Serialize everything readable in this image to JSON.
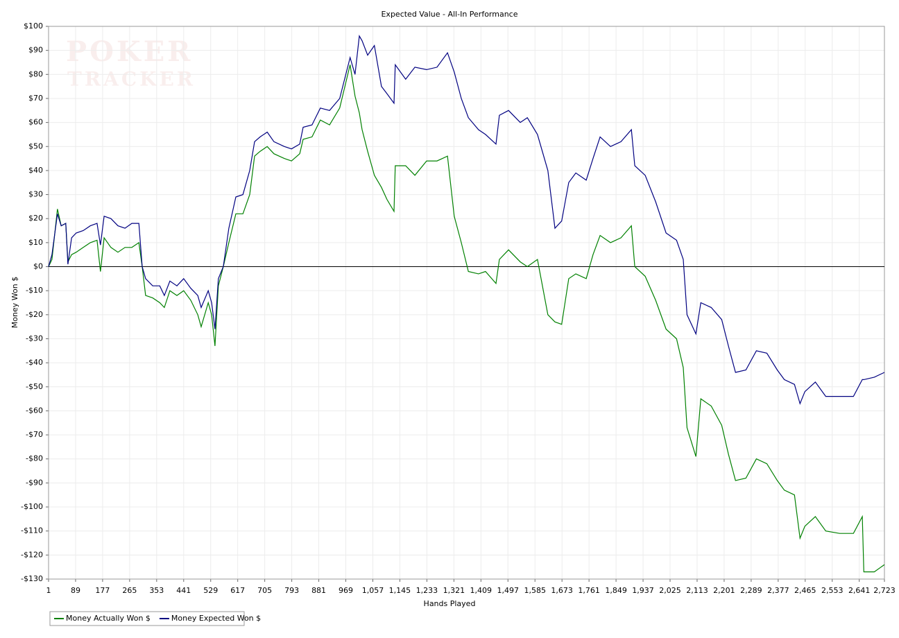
{
  "chart_data": {
    "type": "line",
    "title": "Expected Value - All-In Performance",
    "xlabel": "Hands Played",
    "ylabel": "Money Won $",
    "watermark": [
      "POKER",
      "TRACKER"
    ],
    "grid": true,
    "legend": "bottom-left",
    "xlim": [
      1,
      2723
    ],
    "ylim": [
      -130,
      100
    ],
    "xticks": [
      1,
      89,
      177,
      265,
      353,
      441,
      529,
      617,
      705,
      793,
      881,
      969,
      {
        "value": 1057,
        "label": "1,057"
      },
      {
        "value": 1145,
        "label": "1,145"
      },
      {
        "value": 1233,
        "label": "1,233"
      },
      {
        "value": 1321,
        "label": "1,321"
      },
      {
        "value": 1409,
        "label": "1,409"
      },
      {
        "value": 1497,
        "label": "1,497"
      },
      {
        "value": 1585,
        "label": "1,585"
      },
      {
        "value": 1673,
        "label": "1,673"
      },
      {
        "value": 1761,
        "label": "1,761"
      },
      {
        "value": 1849,
        "label": "1,849"
      },
      {
        "value": 1937,
        "label": "1,937"
      },
      {
        "value": 2025,
        "label": "2,025"
      },
      {
        "value": 2113,
        "label": "2,113"
      },
      {
        "value": 2201,
        "label": "2,201"
      },
      {
        "value": 2289,
        "label": "2,289"
      },
      {
        "value": 2377,
        "label": "2,377"
      },
      {
        "value": 2465,
        "label": "2,465"
      },
      {
        "value": 2553,
        "label": "2,553"
      },
      {
        "value": 2641,
        "label": "2,641"
      },
      {
        "value": 2723,
        "label": "2,723"
      }
    ],
    "yticks": [
      {
        "value": 100,
        "label": "$100"
      },
      {
        "value": 90,
        "label": "$90"
      },
      {
        "value": 80,
        "label": "$80"
      },
      {
        "value": 70,
        "label": "$70"
      },
      {
        "value": 60,
        "label": "$60"
      },
      {
        "value": 50,
        "label": "$50"
      },
      {
        "value": 40,
        "label": "$40"
      },
      {
        "value": 30,
        "label": "$30"
      },
      {
        "value": 20,
        "label": "$20"
      },
      {
        "value": 10,
        "label": "$10"
      },
      {
        "value": 0,
        "label": "$0"
      },
      {
        "value": -10,
        "label": "-$10"
      },
      {
        "value": -20,
        "label": "-$20"
      },
      {
        "value": -30,
        "label": "-$30"
      },
      {
        "value": -40,
        "label": "-$40"
      },
      {
        "value": -50,
        "label": "-$50"
      },
      {
        "value": -60,
        "label": "-$60"
      },
      {
        "value": -70,
        "label": "-$70"
      },
      {
        "value": -80,
        "label": "-$80"
      },
      {
        "value": -90,
        "label": "-$90"
      },
      {
        "value": -100,
        "label": "-$100"
      },
      {
        "value": -110,
        "label": "-$110"
      },
      {
        "value": -120,
        "label": "-$120"
      },
      {
        "value": -130,
        "label": "-$130"
      }
    ],
    "x": [
      1,
      12,
      30,
      42,
      57,
      64,
      76,
      91,
      114,
      137,
      159,
      170,
      182,
      204,
      227,
      250,
      272,
      295,
      306,
      317,
      340,
      363,
      378,
      396,
      419,
      441,
      464,
      487,
      498,
      521,
      532,
      543,
      554,
      570,
      588,
      611,
      634,
      656,
      672,
      690,
      713,
      735,
      769,
      792,
      819,
      830,
      859,
      886,
      916,
      949,
      983,
      999,
      1013,
      1022,
      1040,
      1062,
      1085,
      1103,
      1126,
      1130,
      1164,
      1194,
      1232,
      1266,
      1300,
      1322,
      1345,
      1368,
      1401,
      1424,
      1458,
      1469,
      1499,
      1537,
      1560,
      1593,
      1627,
      1650,
      1672,
      1695,
      1718,
      1752,
      1774,
      1797,
      1831,
      1865,
      1899,
      1910,
      1944,
      1978,
      2012,
      2046,
      2068,
      2080,
      2109,
      2125,
      2159,
      2193,
      2215,
      2238,
      2272,
      2306,
      2340,
      2374,
      2397,
      2430,
      2448,
      2464,
      2498,
      2532,
      2577,
      2622,
      2651,
      2656,
      2690,
      2723
    ],
    "series": [
      {
        "name": "Money Actually Won $",
        "color": "#008000",
        "values": [
          0,
          3,
          24,
          17,
          18,
          2,
          5,
          6,
          8,
          10,
          11,
          -2,
          12,
          8,
          6,
          8,
          8,
          10,
          0,
          -12,
          -13,
          -15,
          -17,
          -10,
          -12,
          -10,
          -14,
          -20,
          -25,
          -15,
          -20,
          -33,
          -8,
          0,
          10,
          22,
          22,
          30,
          46,
          48,
          50,
          47,
          45,
          44,
          47,
          53,
          54,
          61,
          59,
          66,
          84,
          71,
          64,
          57,
          48,
          38,
          33,
          28,
          23,
          42,
          42,
          38,
          44,
          44,
          46,
          21,
          10,
          -2,
          -3,
          -2,
          -7,
          3,
          7,
          2,
          0,
          3,
          -20,
          -23,
          -24,
          -5,
          -3,
          -5,
          5,
          13,
          10,
          12,
          17,
          0,
          -4,
          -14,
          -26,
          -30,
          -42,
          -67,
          -79,
          -55,
          -58,
          -66,
          -78,
          -89,
          -88,
          -80,
          -82,
          -89,
          -93,
          -95,
          -113,
          -108,
          -104,
          -110,
          -111,
          -111,
          -104,
          -127,
          -127,
          -124
        ]
      },
      {
        "name": "Money Expected Won $",
        "color": "#000080",
        "values": [
          0,
          5,
          22,
          17,
          18,
          1,
          12,
          14,
          15,
          17,
          18,
          9,
          21,
          20,
          17,
          16,
          18,
          18,
          0,
          -5,
          -8,
          -8,
          -12,
          -6,
          -8,
          -5,
          -9,
          -12,
          -17,
          -10,
          -15,
          -26,
          -5,
          0,
          16,
          29,
          30,
          40,
          52,
          54,
          56,
          52,
          50,
          49,
          51,
          58,
          59,
          66,
          65,
          70,
          87,
          80,
          96,
          94,
          88,
          92,
          75,
          72,
          68,
          84,
          78,
          83,
          82,
          83,
          89,
          81,
          70,
          62,
          57,
          55,
          51,
          63,
          65,
          60,
          62,
          55,
          40,
          16,
          19,
          35,
          39,
          36,
          45,
          54,
          50,
          52,
          57,
          42,
          38,
          27,
          14,
          11,
          3,
          -20,
          -28,
          -15,
          -17,
          -22,
          -33,
          -44,
          -43,
          -35,
          -36,
          -43,
          -47,
          -49,
          -57,
          -52,
          -48,
          -54,
          -54,
          -54,
          -47,
          -47,
          -46,
          -44
        ]
      }
    ]
  }
}
